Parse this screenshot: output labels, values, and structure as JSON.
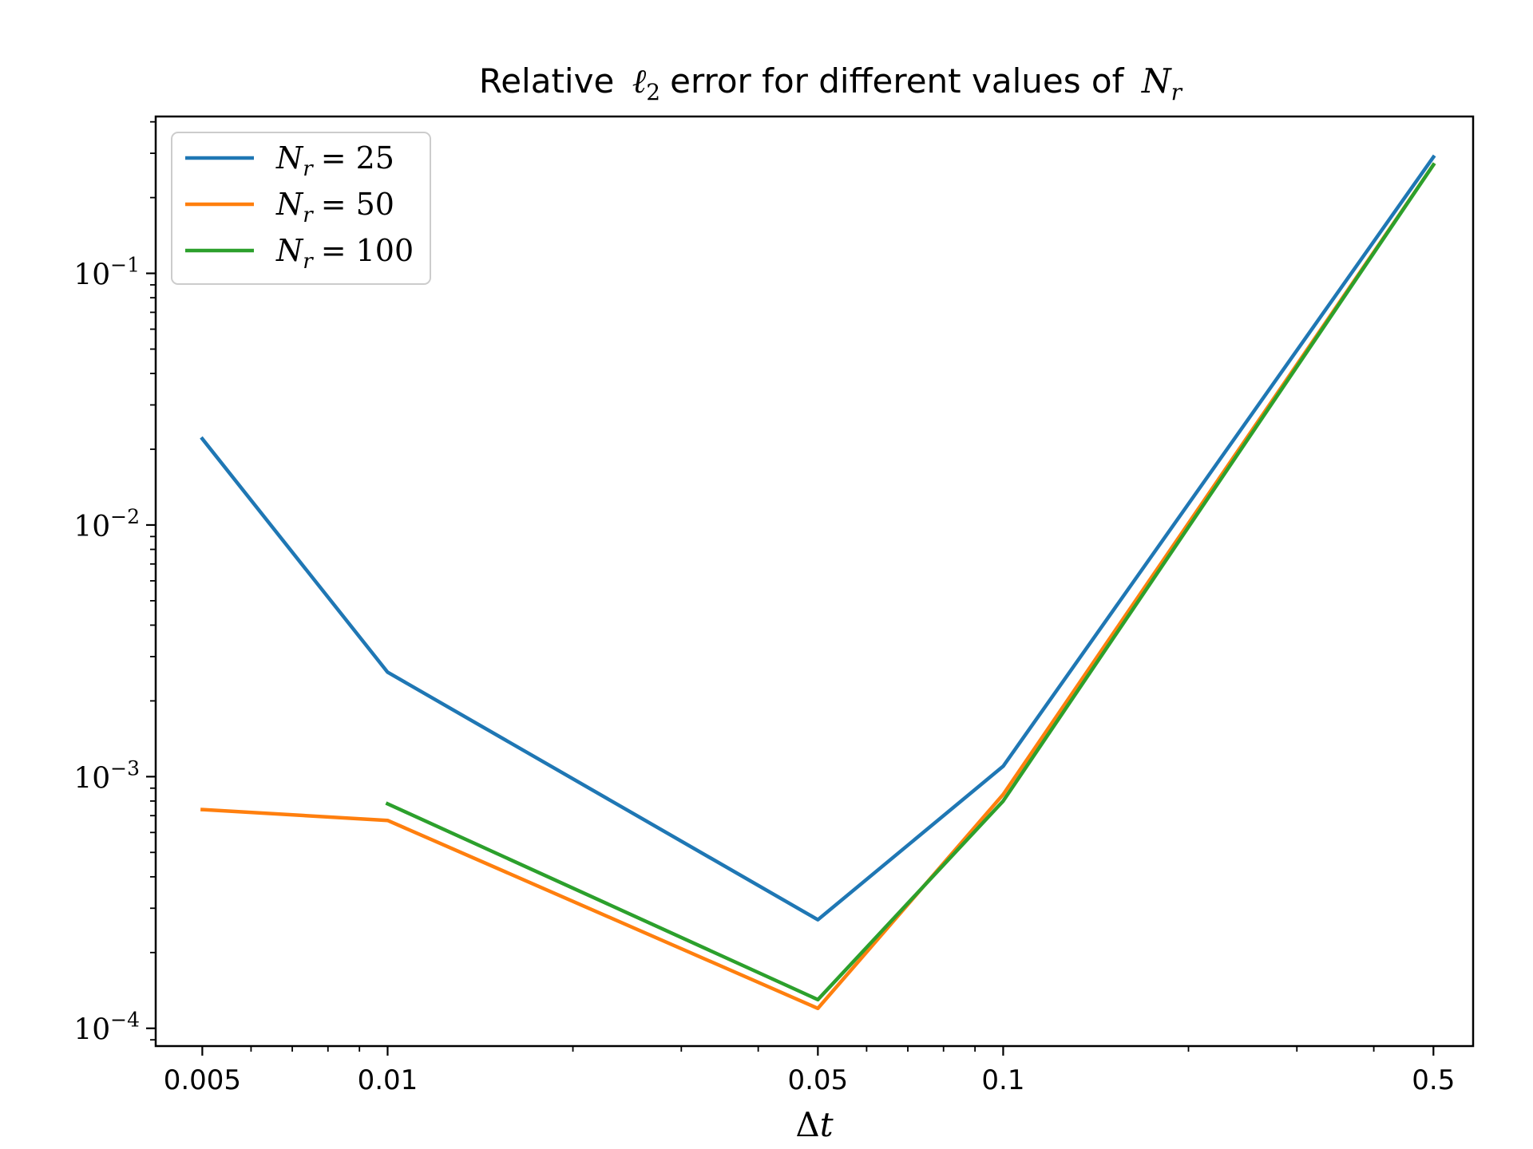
{
  "chart_data": {
    "type": "line",
    "title_text": "Relative",
    "title_ell": "ℓ",
    "title_ell_sub": "2",
    "title_rest": "error for different values of",
    "title_var": "N",
    "title_var_sub": "r",
    "xlabel_delta": "Δ",
    "xlabel_var": "t",
    "xscale": "log",
    "yscale": "log",
    "xlim": [
      0.0042,
      0.58
    ],
    "ylim": [
      8.5e-05,
      0.42
    ],
    "grid": false,
    "legend_position": "top-left",
    "x_ticks": [
      0.005,
      0.01,
      0.05,
      0.1,
      0.5
    ],
    "x_tick_labels": [
      "0.005",
      "0.01",
      "0.05",
      "0.1",
      "0.5"
    ],
    "y_ticks": [
      0.0001,
      0.001,
      0.01,
      0.1
    ],
    "y_tick_base": "10",
    "y_tick_exponents": [
      "−4",
      "−3",
      "−2",
      "−1"
    ],
    "series": [
      {
        "name_var": "N",
        "name_sub": "r",
        "name_eq": "= 25",
        "color": "#1f77b4",
        "x": [
          0.005,
          0.01,
          0.05,
          0.1,
          0.5
        ],
        "y": [
          0.022,
          0.0026,
          0.00027,
          0.0011,
          0.29
        ]
      },
      {
        "name_var": "N",
        "name_sub": "r",
        "name_eq": "= 50",
        "color": "#ff7f0e",
        "x": [
          0.005,
          0.01,
          0.05,
          0.1,
          0.5
        ],
        "y": [
          0.00074,
          0.00067,
          0.00012,
          0.00085,
          0.27
        ]
      },
      {
        "name_var": "N",
        "name_sub": "r",
        "name_eq": "= 100",
        "color": "#2ca02c",
        "x": [
          0.01,
          0.05,
          0.1,
          0.5
        ],
        "y": [
          0.00078,
          0.00013,
          0.0008,
          0.27
        ]
      }
    ]
  }
}
